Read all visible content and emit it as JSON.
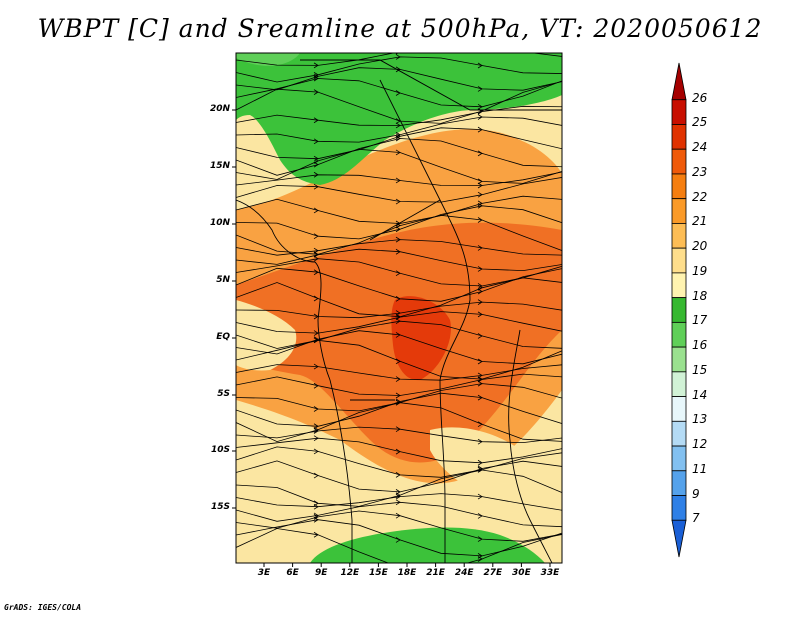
{
  "title": "WBPT [C] and Sreamline at 500hPa, VT: 2020050612",
  "credit": "GrADS: IGES/COLA",
  "map": {
    "lat_labels": [
      "20N",
      "15N",
      "10N",
      "5N",
      "EQ",
      "5S",
      "10S",
      "15S"
    ],
    "lon_labels": [
      "3E",
      "6E",
      "9E",
      "12E",
      "15E",
      "18E",
      "21E",
      "24E",
      "27E",
      "30E",
      "33E"
    ]
  },
  "colorbar": {
    "labels": [
      "26",
      "25",
      "24",
      "23",
      "22",
      "21",
      "20",
      "19",
      "18",
      "17",
      "16",
      "15",
      "14",
      "13",
      "12",
      "11",
      "9",
      "7"
    ],
    "colors": [
      "#a50000",
      "#c80f00",
      "#e03200",
      "#ef5a0a",
      "#f57e10",
      "#fa9a28",
      "#fdbd55",
      "#fede8c",
      "#fff3b0",
      "#36b830",
      "#5fcf58",
      "#9ae18f",
      "#d1f2d6",
      "#e8f7fb",
      "#b4dbf5",
      "#82c0f0",
      "#55a2eb",
      "#2f80e6",
      "#1a5fd6"
    ]
  },
  "colors": {
    "green": "#3cc23a",
    "yellow": "#fbe6a2",
    "orange": "#f9a242",
    "dark_orange": "#f07024",
    "red": "#e43a0a"
  }
}
